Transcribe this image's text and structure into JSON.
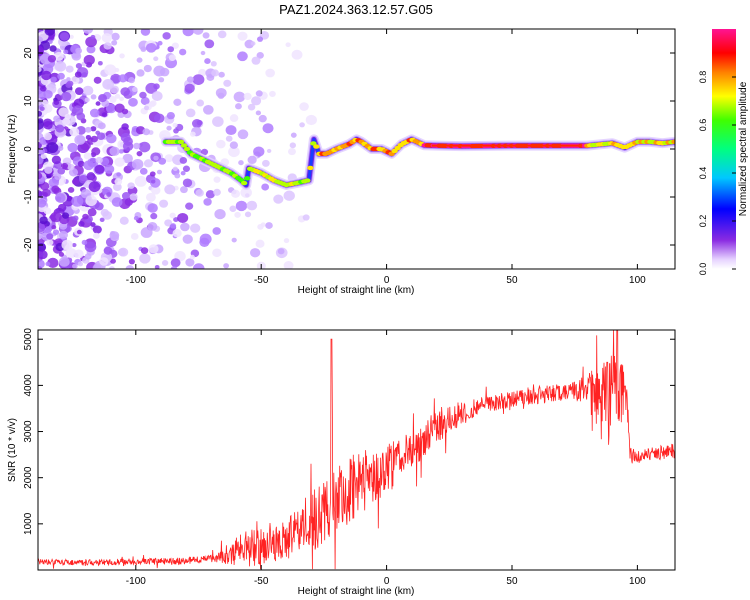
{
  "figure": {
    "title": "PAZ1.2024.363.12.57.G05"
  },
  "chart_data": [
    {
      "type": "heatmap",
      "title": "PAZ1.2024.363.12.57.G05",
      "xlabel": "Height of straight line (km)",
      "ylabel": "Frequency (Hz)",
      "xlim": [
        -139,
        115
      ],
      "ylim": [
        -25,
        25
      ],
      "xticks": [
        -100,
        -50,
        0,
        50,
        100
      ],
      "xtick_labels": [
        "-100",
        "-50",
        "0",
        "50",
        "100"
      ],
      "yticks": [
        -20,
        -10,
        0,
        10,
        20
      ],
      "ytick_labels": [
        "-20",
        "-10",
        "0",
        "10",
        "20"
      ],
      "colorbar": {
        "label": "Normalized spectral amplitude",
        "range": [
          0,
          1
        ],
        "ticks": [
          0.0,
          0.2,
          0.4,
          0.6,
          0.8
        ],
        "tick_labels": [
          "0.0",
          "0.2",
          "0.4",
          "0.6",
          "0.8"
        ],
        "colormap": "rainbow (white-violet-blue-cyan-green-yellow-red-magenta)"
      },
      "ridge": {
        "x": [
          -88,
          -82,
          -78,
          -74,
          -70,
          -66,
          -62,
          -58,
          -56,
          -55,
          -50,
          -45,
          -40,
          -35,
          -31,
          -29,
          -27,
          -24,
          -20,
          -15,
          -12,
          -10,
          -6,
          -2,
          2,
          6,
          10,
          15,
          20,
          30,
          50,
          70,
          80,
          90,
          95,
          100,
          105,
          110,
          115
        ],
        "y": [
          1.5,
          1.5,
          -1,
          -2,
          -3,
          -4,
          -5,
          -6.5,
          -7.5,
          -4,
          -5,
          -6.5,
          -7.5,
          -7,
          -6.5,
          2,
          -1,
          -1,
          0,
          1,
          2,
          1.5,
          0,
          0,
          -1,
          1,
          2,
          0.8,
          0.7,
          0.6,
          0.7,
          0.7,
          0.7,
          1.2,
          0.3,
          1.5,
          1.5,
          1.2,
          1.5
        ]
      },
      "noise_region_x": [
        -139,
        -28
      ]
    },
    {
      "type": "line",
      "xlabel": "Height of straight line (km)",
      "ylabel": "SNR (10 * v/v)",
      "xlim": [
        -139,
        115
      ],
      "ylim": [
        0,
        5200
      ],
      "xticks": [
        -100,
        -50,
        0,
        50,
        100
      ],
      "xtick_labels": [
        "-100",
        "-50",
        "0",
        "50",
        "100"
      ],
      "yticks": [
        1000,
        2000,
        3000,
        4000,
        5000
      ],
      "ytick_labels": [
        "1000",
        "2000",
        "3000",
        "4000",
        "5000"
      ],
      "series_color": "#ff2222",
      "envelope": {
        "x": [
          -139,
          -120,
          -100,
          -80,
          -70,
          -60,
          -55,
          -50,
          -40,
          -35,
          -30,
          -25,
          -20,
          -15,
          -10,
          -5,
          0,
          5,
          10,
          20,
          30,
          40,
          50,
          60,
          70,
          75,
          80,
          85,
          90,
          95,
          96,
          97,
          100,
          105,
          110,
          115
        ],
        "y": [
          180,
          160,
          180,
          200,
          250,
          400,
          600,
          500,
          650,
          900,
          1000,
          1300,
          1500,
          1700,
          1900,
          2000,
          2200,
          2400,
          2600,
          3100,
          3400,
          3600,
          3700,
          3780,
          3850,
          3880,
          3900,
          3800,
          3900,
          3800,
          3500,
          2500,
          2450,
          2500,
          2550,
          2600
        ]
      },
      "noise_amplitude": {
        "x": [
          -139,
          -70,
          -60,
          -50,
          -40,
          -30,
          -20,
          -10,
          0,
          10,
          20,
          40,
          60,
          75,
          80,
          85,
          90,
          95,
          97,
          115
        ],
        "y": [
          60,
          80,
          300,
          400,
          400,
          700,
          800,
          700,
          500,
          450,
          350,
          180,
          180,
          200,
          400,
          600,
          800,
          600,
          150,
          150
        ]
      },
      "spikes": [
        {
          "x": -22,
          "y": 5000
        },
        {
          "x": 92,
          "y": 5200
        },
        {
          "x": 88,
          "y": 4500
        }
      ]
    }
  ]
}
